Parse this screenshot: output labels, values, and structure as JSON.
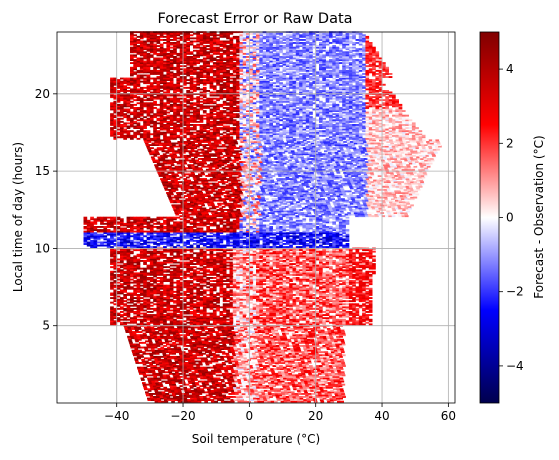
{
  "chart_data": {
    "type": "heatmap",
    "title": "Forecast Error or Raw Data",
    "xlabel": "Soil temperature (°C)",
    "ylabel": "Local time of day (hours)",
    "xlim": [
      -58,
      62
    ],
    "ylim": [
      0,
      24
    ],
    "xticks": [
      -40,
      -20,
      0,
      20,
      40,
      60
    ],
    "yticks": [
      5,
      10,
      15,
      20
    ],
    "grid": true,
    "colorbar": {
      "label": "Forecast - Observation (°C)",
      "range": [
        -5,
        5
      ],
      "ticks": [
        -4,
        -2,
        0,
        2,
        4
      ],
      "colormap": "seismic",
      "colors": [
        "#00004d",
        "#0000ff",
        "#ffffff",
        "#ff0000",
        "#800000"
      ]
    },
    "approximate_pattern": [
      {
        "region": "morning, soil temp -30 to 0 °C, hours 1-10",
        "error": "strong positive (red)"
      },
      {
        "region": "morning, soil temp 0 to 30 °C, hours 1-10",
        "error": "positive (red)"
      },
      {
        "region": "near 10 h, soil temp -20 to 30 °C",
        "error": "negative (blue)"
      },
      {
        "region": "afternoon, soil temp 0 to 40 °C, hours 12-22",
        "error": "negative (blue)"
      },
      {
        "region": "afternoon, soil temp -30 to 0 °C, hours 12-22",
        "error": "strong positive (red)"
      },
      {
        "region": "evening, soil temp 30 to 45 °C, hours 20-23",
        "error": "positive (red)"
      }
    ]
  }
}
